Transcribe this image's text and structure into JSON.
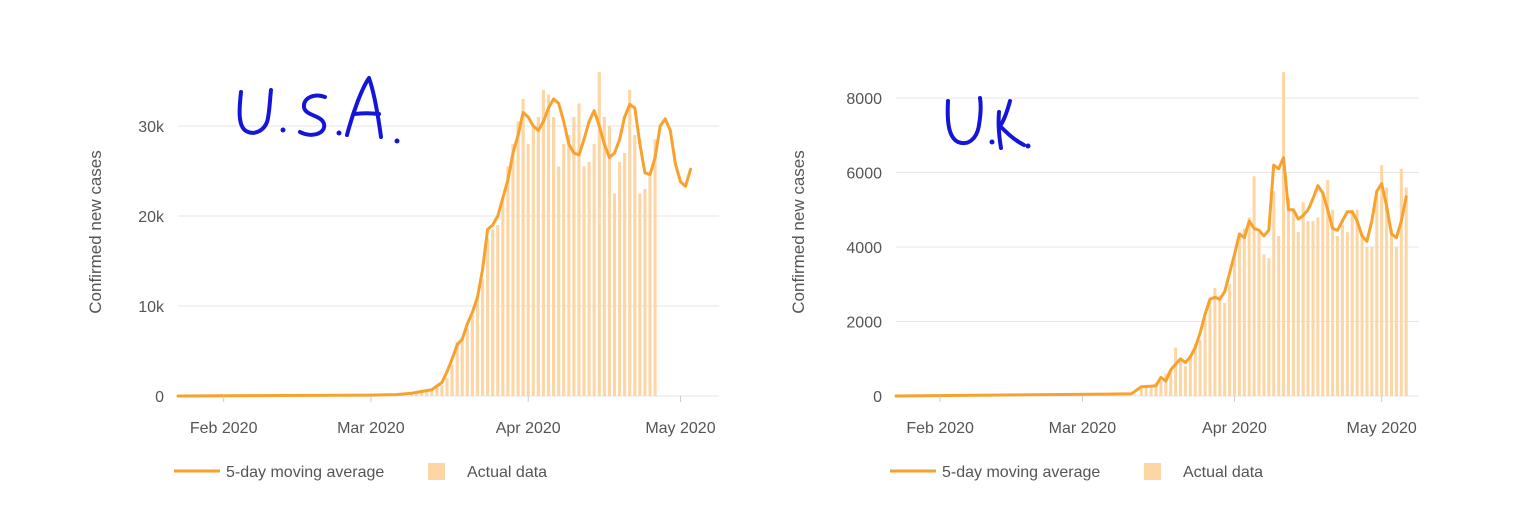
{
  "colors": {
    "line": "#f7a22e",
    "bar": "#fdd6a6",
    "grid": "#e6e6e6",
    "axis_text": "#555555",
    "annotation": "#1515d9"
  },
  "legend": {
    "line_label": "5-day moving average",
    "bar_label": "Actual data"
  },
  "chart_data": [
    {
      "type": "bar",
      "annotation": "U.S.A.",
      "ylabel": "Confirmed new cases",
      "xlabel": "",
      "ylim": [
        0,
        35000
      ],
      "x_range": [
        "2020-01-23",
        "2020-05-08"
      ],
      "x_ticks": [
        {
          "date": "2020-02-01",
          "label": "Feb 2020"
        },
        {
          "date": "2020-03-01",
          "label": "Mar 2020"
        },
        {
          "date": "2020-04-01",
          "label": "Apr 2020"
        },
        {
          "date": "2020-05-01",
          "label": "May 2020"
        }
      ],
      "y_ticks": [
        {
          "value": 0,
          "label": "0"
        },
        {
          "value": 10000,
          "label": "10k"
        },
        {
          "value": 20000,
          "label": "20k"
        },
        {
          "value": 30000,
          "label": "30k"
        }
      ],
      "grid": true,
      "legend_position": "bottom",
      "series": [
        {
          "name": "Actual data",
          "kind": "bar",
          "start_date": "2020-03-09",
          "values": [
            300,
            400,
            500,
            700,
            800,
            1000,
            1200,
            2000,
            3500,
            6000,
            6500,
            7500,
            9000,
            11000,
            13000,
            17500,
            18500,
            19000,
            22000,
            25500,
            28000,
            30500,
            33000,
            28000,
            30000,
            31000,
            34000,
            33500,
            31000,
            25500,
            28000,
            29000,
            31000,
            32500,
            25500,
            26000,
            28000,
            36000,
            31000,
            30000,
            22500,
            26000,
            27000,
            34000,
            29000,
            22500,
            23000,
            24500,
            28500
          ]
        },
        {
          "name": "5-day moving average",
          "kind": "line",
          "points": [
            [
              "2020-01-23",
              0
            ],
            [
              "2020-03-01",
              100
            ],
            [
              "2020-03-06",
              150
            ],
            [
              "2020-03-09",
              300
            ],
            [
              "2020-03-10",
              400
            ],
            [
              "2020-03-11",
              500
            ],
            [
              "2020-03-12",
              600
            ],
            [
              "2020-03-13",
              700
            ],
            [
              "2020-03-14",
              1100
            ],
            [
              "2020-03-15",
              1500
            ],
            [
              "2020-03-16",
              2700
            ],
            [
              "2020-03-17",
              4100
            ],
            [
              "2020-03-18",
              5700
            ],
            [
              "2020-03-19",
              6300
            ],
            [
              "2020-03-20",
              8000
            ],
            [
              "2020-03-21",
              9300
            ],
            [
              "2020-03-22",
              11000
            ],
            [
              "2020-03-23",
              14000
            ],
            [
              "2020-03-24",
              18500
            ],
            [
              "2020-03-25",
              19000
            ],
            [
              "2020-03-26",
              20000
            ],
            [
              "2020-03-27",
              22000
            ],
            [
              "2020-03-28",
              24000
            ],
            [
              "2020-03-29",
              27000
            ],
            [
              "2020-03-30",
              29000
            ],
            [
              "2020-03-31",
              31500
            ],
            [
              "2020-04-01",
              31000
            ],
            [
              "2020-04-02",
              30000
            ],
            [
              "2020-04-03",
              29500
            ],
            [
              "2020-04-04",
              30500
            ],
            [
              "2020-04-05",
              32000
            ],
            [
              "2020-04-06",
              33000
            ],
            [
              "2020-04-07",
              32500
            ],
            [
              "2020-04-08",
              30500
            ],
            [
              "2020-04-09",
              28000
            ],
            [
              "2020-04-10",
              27000
            ],
            [
              "2020-04-11",
              26800
            ],
            [
              "2020-04-12",
              28500
            ],
            [
              "2020-04-13",
              30500
            ],
            [
              "2020-04-14",
              31700
            ],
            [
              "2020-04-15",
              30000
            ],
            [
              "2020-04-16",
              28000
            ],
            [
              "2020-04-17",
              26500
            ],
            [
              "2020-04-18",
              27000
            ],
            [
              "2020-04-19",
              28500
            ],
            [
              "2020-04-20",
              31000
            ],
            [
              "2020-04-21",
              32400
            ],
            [
              "2020-04-22",
              32000
            ],
            [
              "2020-04-23",
              28000
            ],
            [
              "2020-04-24",
              24800
            ],
            [
              "2020-04-25",
              24600
            ],
            [
              "2020-04-26",
              26500
            ],
            [
              "2020-04-27",
              30000
            ],
            [
              "2020-04-28",
              30800
            ],
            [
              "2020-04-29",
              29500
            ],
            [
              "2020-04-30",
              25800
            ],
            [
              "2020-05-01",
              23800
            ],
            [
              "2020-05-02",
              23300
            ],
            [
              "2020-05-03",
              25200
            ]
          ]
        }
      ]
    },
    {
      "type": "bar",
      "annotation": "U.K.",
      "ylabel": "Confirmed new cases",
      "xlabel": "",
      "ylim": [
        0,
        8700
      ],
      "x_range": [
        "2020-01-23",
        "2020-05-08"
      ],
      "x_ticks": [
        {
          "date": "2020-02-01",
          "label": "Feb 2020"
        },
        {
          "date": "2020-03-01",
          "label": "Mar 2020"
        },
        {
          "date": "2020-04-01",
          "label": "Apr 2020"
        },
        {
          "date": "2020-05-01",
          "label": "May 2020"
        }
      ],
      "y_ticks": [
        {
          "value": 0,
          "label": "0"
        },
        {
          "value": 2000,
          "label": "2000"
        },
        {
          "value": 4000,
          "label": "4000"
        },
        {
          "value": 6000,
          "label": "6000"
        },
        {
          "value": 8000,
          "label": "8000"
        }
      ],
      "grid": true,
      "legend_position": "bottom",
      "series": [
        {
          "name": "Actual data",
          "kind": "bar",
          "start_date": "2020-03-13",
          "values": [
            200,
            250,
            300,
            350,
            400,
            600,
            700,
            1300,
            1000,
            800,
            1100,
            1400,
            1500,
            2100,
            2600,
            2900,
            2700,
            2500,
            3000,
            3800,
            4300,
            4500,
            4800,
            5900,
            4400,
            3800,
            3700,
            5500,
            4300,
            8700,
            5300,
            5000,
            4400,
            5200,
            4700,
            4700,
            4800,
            5500,
            5800,
            5000,
            4300,
            4600,
            4400,
            5000,
            5000,
            4400,
            4000,
            4000,
            5500,
            6200,
            5600,
            4500,
            4000,
            6100,
            5600
          ]
        },
        {
          "name": "5-day moving average",
          "kind": "line",
          "points": [
            [
              "2020-01-23",
              0
            ],
            [
              "2020-03-06",
              50
            ],
            [
              "2020-03-11",
              60
            ],
            [
              "2020-03-13",
              250
            ],
            [
              "2020-03-15",
              260
            ],
            [
              "2020-03-16",
              280
            ],
            [
              "2020-03-17",
              500
            ],
            [
              "2020-03-18",
              400
            ],
            [
              "2020-03-19",
              700
            ],
            [
              "2020-03-20",
              850
            ],
            [
              "2020-03-21",
              1000
            ],
            [
              "2020-03-22",
              900
            ],
            [
              "2020-03-23",
              1050
            ],
            [
              "2020-03-24",
              1300
            ],
            [
              "2020-03-25",
              1700
            ],
            [
              "2020-03-26",
              2200
            ],
            [
              "2020-03-27",
              2600
            ],
            [
              "2020-03-28",
              2650
            ],
            [
              "2020-03-29",
              2600
            ],
            [
              "2020-03-30",
              2800
            ],
            [
              "2020-03-31",
              3300
            ],
            [
              "2020-04-01",
              3800
            ],
            [
              "2020-04-02",
              4350
            ],
            [
              "2020-04-03",
              4250
            ],
            [
              "2020-04-04",
              4700
            ],
            [
              "2020-04-05",
              4500
            ],
            [
              "2020-04-06",
              4450
            ],
            [
              "2020-04-07",
              4300
            ],
            [
              "2020-04-08",
              4450
            ],
            [
              "2020-04-09",
              6200
            ],
            [
              "2020-04-10",
              6100
            ],
            [
              "2020-04-11",
              6400
            ],
            [
              "2020-04-12",
              5000
            ],
            [
              "2020-04-13",
              5000
            ],
            [
              "2020-04-14",
              4750
            ],
            [
              "2020-04-15",
              4850
            ],
            [
              "2020-04-16",
              5000
            ],
            [
              "2020-04-17",
              5300
            ],
            [
              "2020-04-18",
              5650
            ],
            [
              "2020-04-19",
              5450
            ],
            [
              "2020-04-20",
              5000
            ],
            [
              "2020-04-21",
              4500
            ],
            [
              "2020-04-22",
              4450
            ],
            [
              "2020-04-23",
              4700
            ],
            [
              "2020-04-24",
              4950
            ],
            [
              "2020-04-25",
              4950
            ],
            [
              "2020-04-26",
              4700
            ],
            [
              "2020-04-27",
              4300
            ],
            [
              "2020-04-28",
              4150
            ],
            [
              "2020-04-29",
              4700
            ],
            [
              "2020-04-30",
              5500
            ],
            [
              "2020-05-01",
              5700
            ],
            [
              "2020-05-02",
              5100
            ],
            [
              "2020-05-03",
              4350
            ],
            [
              "2020-05-04",
              4250
            ],
            [
              "2020-05-05",
              4700
            ],
            [
              "2020-05-06",
              5350
            ]
          ]
        }
      ]
    }
  ]
}
